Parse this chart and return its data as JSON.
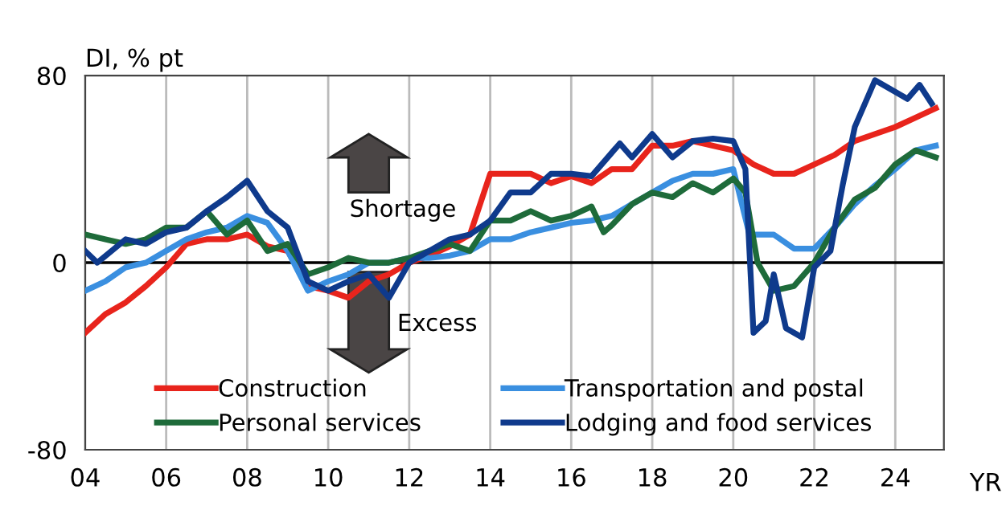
{
  "chart_data": {
    "type": "line",
    "ylabel": "DI, % pt",
    "xlabel": "YR",
    "xlim": [
      2004,
      2025.2
    ],
    "xticks": [
      {
        "value": 2004,
        "label": "04"
      },
      {
        "value": 2006,
        "label": "06"
      },
      {
        "value": 2008,
        "label": "08"
      },
      {
        "value": 2010,
        "label": "10"
      },
      {
        "value": 2012,
        "label": "12"
      },
      {
        "value": 2014,
        "label": "14"
      },
      {
        "value": 2016,
        "label": "16"
      },
      {
        "value": 2018,
        "label": "18"
      },
      {
        "value": 2020,
        "label": "20"
      },
      {
        "value": 2022,
        "label": "22"
      },
      {
        "value": 2024,
        "label": "24"
      }
    ],
    "ylim": [
      -80,
      80
    ],
    "yticks": [
      -80,
      0,
      80
    ],
    "grid": "x",
    "legend": "bottom",
    "line_style": "solid",
    "ref_lines": [
      {
        "axis": "y",
        "value": 0,
        "color": "#000000"
      }
    ],
    "annotations": [
      "Shortage",
      "Excess"
    ],
    "series": [
      {
        "name": "Construction",
        "color": "#e8241c",
        "x": [
          2004.0,
          2004.5,
          2005.0,
          2005.5,
          2006.0,
          2006.5,
          2007.0,
          2007.5,
          2008.0,
          2008.5,
          2009.0,
          2009.5,
          2010.0,
          2010.5,
          2011.0,
          2011.5,
          2012.0,
          2012.5,
          2013.0,
          2013.5,
          2014.0,
          2014.5,
          2015.0,
          2015.5,
          2016.0,
          2016.5,
          2017.0,
          2017.5,
          2018.0,
          2018.5,
          2019.0,
          2019.5,
          2020.0,
          2020.5,
          2021.0,
          2021.5,
          2022.0,
          2022.5,
          2023.0,
          2023.5,
          2024.0,
          2024.5,
          2025.0
        ],
        "values": [
          -30,
          -22,
          -17,
          -10,
          -2,
          8,
          10,
          10,
          12,
          7,
          5,
          -10,
          -12,
          -15,
          -8,
          -5,
          0,
          3,
          7,
          12,
          38,
          38,
          38,
          34,
          37,
          34,
          40,
          40,
          50,
          50,
          52,
          50,
          48,
          42,
          38,
          38,
          42,
          46,
          52,
          55,
          58,
          62,
          66
        ]
      },
      {
        "name": "Transportation and postal",
        "color": "#3a8fe0",
        "x": [
          2004.0,
          2004.5,
          2005.0,
          2005.5,
          2006.0,
          2006.5,
          2007.0,
          2007.5,
          2008.0,
          2008.5,
          2009.0,
          2009.5,
          2010.0,
          2010.5,
          2011.0,
          2011.5,
          2012.0,
          2012.5,
          2013.0,
          2013.5,
          2014.0,
          2014.5,
          2015.0,
          2015.5,
          2016.0,
          2016.5,
          2017.0,
          2017.5,
          2018.0,
          2018.5,
          2019.0,
          2019.5,
          2020.0,
          2020.4,
          2021.0,
          2021.5,
          2022.0,
          2022.5,
          2023.0,
          2023.5,
          2024.0,
          2024.5,
          2025.0
        ],
        "values": [
          -12,
          -8,
          -2,
          0,
          5,
          10,
          13,
          15,
          20,
          17,
          5,
          -12,
          -8,
          -5,
          0,
          0,
          2,
          2,
          3,
          5,
          10,
          10,
          13,
          15,
          17,
          18,
          20,
          25,
          30,
          35,
          38,
          38,
          40,
          12,
          12,
          6,
          6,
          15,
          25,
          33,
          40,
          48,
          50
        ]
      },
      {
        "name": "Personal services",
        "color": "#1e6b3a",
        "x": [
          2004.0,
          2004.5,
          2005.0,
          2005.5,
          2006.0,
          2006.5,
          2007.0,
          2007.5,
          2008.0,
          2008.5,
          2009.0,
          2009.5,
          2010.0,
          2010.5,
          2011.0,
          2011.5,
          2012.0,
          2012.5,
          2013.0,
          2013.5,
          2014.0,
          2014.5,
          2015.0,
          2015.5,
          2016.0,
          2016.5,
          2016.8,
          2017.0,
          2017.5,
          2018.0,
          2018.5,
          2019.0,
          2019.5,
          2020.0,
          2020.3,
          2020.6,
          2021.0,
          2021.5,
          2022.0,
          2022.5,
          2023.0,
          2023.5,
          2024.0,
          2024.5,
          2025.0
        ],
        "values": [
          12,
          10,
          8,
          10,
          15,
          15,
          22,
          12,
          18,
          5,
          8,
          -5,
          -2,
          2,
          0,
          0,
          2,
          5,
          8,
          5,
          18,
          18,
          22,
          18,
          20,
          24,
          13,
          16,
          25,
          30,
          28,
          34,
          30,
          36,
          30,
          0,
          -12,
          -10,
          0,
          15,
          27,
          32,
          42,
          48,
          45
        ]
      },
      {
        "name": "Lodging and food services",
        "color": "#0f3a8c",
        "x": [
          2004.0,
          2004.3,
          2005.0,
          2005.5,
          2006.0,
          2006.5,
          2007.0,
          2007.5,
          2008.0,
          2008.5,
          2009.0,
          2009.5,
          2010.0,
          2010.5,
          2011.0,
          2011.5,
          2012.0,
          2012.5,
          2013.0,
          2013.5,
          2014.0,
          2014.5,
          2015.0,
          2015.5,
          2016.0,
          2016.5,
          2017.2,
          2017.5,
          2018.0,
          2018.5,
          2019.0,
          2019.5,
          2020.0,
          2020.3,
          2020.5,
          2020.8,
          2021.0,
          2021.3,
          2021.7,
          2022.0,
          2022.4,
          2022.7,
          2023.0,
          2023.5,
          2024.0,
          2024.3,
          2024.6,
          2024.9
        ],
        "values": [
          5,
          0,
          10,
          8,
          13,
          15,
          22,
          28,
          35,
          22,
          15,
          -8,
          -12,
          -8,
          -5,
          -15,
          0,
          5,
          10,
          12,
          18,
          30,
          30,
          38,
          38,
          37,
          51,
          45,
          55,
          45,
          52,
          53,
          52,
          40,
          -30,
          -25,
          -5,
          -28,
          -32,
          -2,
          5,
          33,
          58,
          78,
          73,
          70,
          76,
          68
        ]
      }
    ]
  }
}
